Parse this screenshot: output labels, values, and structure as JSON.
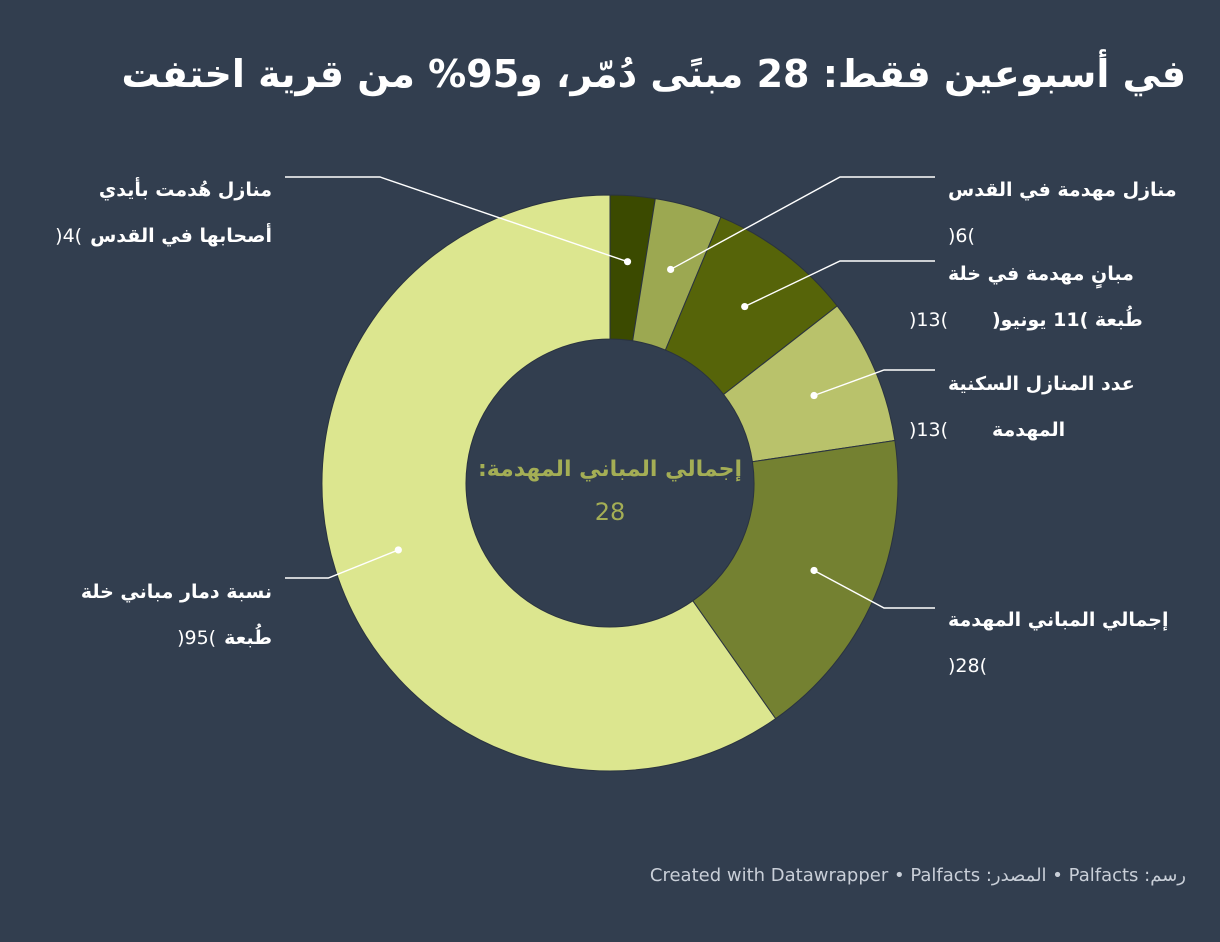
{
  "title": "في أسبوعين فقط: 28 مبنًى دُمّر، و95% من قرية اختفت",
  "footer": {
    "credit_label": "رسم:",
    "credit_value": "Palfacts",
    "source_label": "المصدر:",
    "source_value": "Palfacts",
    "created_with": "Created with Datawrapper",
    "separator": "•"
  },
  "chart_data": {
    "type": "pie",
    "donut": true,
    "center_label": "إجمالي المباني المهدمة:",
    "center_value": "28",
    "slices": [
      {
        "label_lines": [
          "منازل هُدمت بأيدي",
          "أصحابها في القدس"
        ],
        "value": 4,
        "value_text": ")4(",
        "color": "#3b4a00"
      },
      {
        "label_lines": [
          "منازل مهدمة في القدس"
        ],
        "value": 6,
        "value_text": ")6(",
        "color": "#9ca851"
      },
      {
        "label_lines": [
          "مبانٍ مهدمة في خلة",
          "طُبعة )11 يونيو("
        ],
        "value": 13,
        "value_text": ")13(",
        "color": "#566409"
      },
      {
        "label_lines": [
          "عدد المنازل السكنية",
          "المهدمة"
        ],
        "value": 13,
        "value_text": ")13(",
        "color": "#b9c26b"
      },
      {
        "label_lines": [
          "إجمالي المباني المهدمة"
        ],
        "value": 28,
        "value_text": ")28(",
        "color": "#748131"
      },
      {
        "label_lines": [
          "نسبة دمار مباني خلة",
          "طُبعة"
        ],
        "value": 95,
        "value_text": ")95(",
        "color": "#dce68f"
      }
    ]
  }
}
